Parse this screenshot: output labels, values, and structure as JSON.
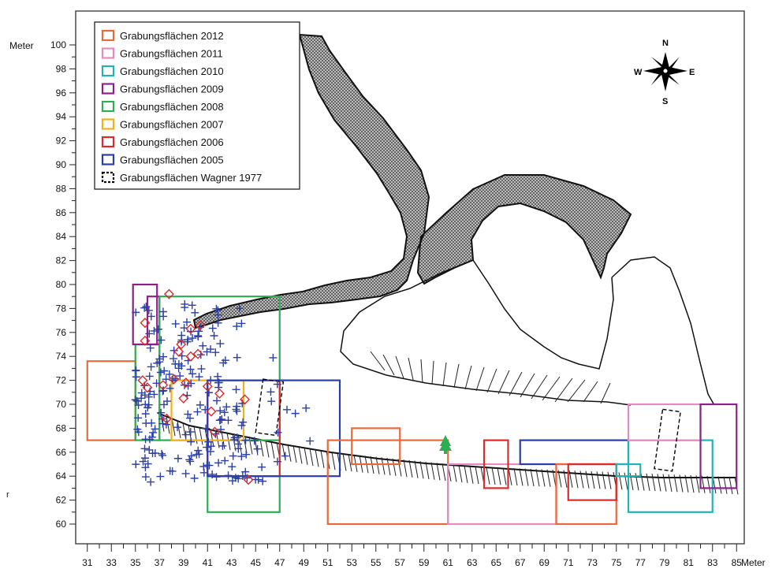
{
  "axes": {
    "y_unit": "Meter",
    "x_unit": "Meter",
    "y_ticks": [
      100,
      98,
      96,
      94,
      92,
      90,
      88,
      86,
      84,
      82,
      80,
      78,
      76,
      74,
      72,
      70,
      68,
      66,
      64,
      62,
      60
    ],
    "x_ticks": [
      31,
      33,
      35,
      37,
      39,
      41,
      43,
      45,
      47,
      49,
      51,
      53,
      55,
      57,
      59,
      61,
      63,
      65,
      67,
      69,
      71,
      73,
      75,
      77,
      79,
      81,
      83,
      85
    ],
    "x_range": [
      30,
      86
    ],
    "y_range": [
      58,
      102
    ]
  },
  "compass": {
    "n": "N",
    "s": "S",
    "e": "E",
    "w": "W"
  },
  "legend": [
    {
      "label": "Grabungsflächen 2012",
      "color": "#e8693a",
      "style": "solid"
    },
    {
      "label": "Grabungsflächen 2011",
      "color": "#e58bbf",
      "style": "solid"
    },
    {
      "label": "Grabungsflächen 2010",
      "color": "#22b4b4",
      "style": "solid"
    },
    {
      "label": "Grabungsflächen 2009",
      "color": "#8e1f8e",
      "style": "solid"
    },
    {
      "label": "Grabungsflächen 2008",
      "color": "#2eae52",
      "style": "solid"
    },
    {
      "label": "Grabungsflächen 2007",
      "color": "#f0b21c",
      "style": "solid"
    },
    {
      "label": "Grabungsflächen 2006",
      "color": "#dd2a2a",
      "style": "solid"
    },
    {
      "label": "Grabungsflächen 2005",
      "color": "#2a3fa8",
      "style": "solid"
    },
    {
      "label": "Grabungsflächen Wagner 1977",
      "color": "#000000",
      "style": "dashed"
    }
  ],
  "stray_text": "r"
}
